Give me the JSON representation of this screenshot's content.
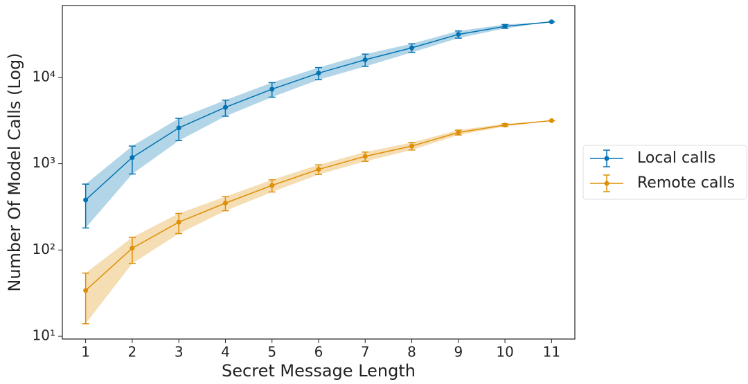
{
  "chart_data": {
    "type": "line",
    "x_label": "Secret Message Length",
    "y_label": "Number Of Model Calls (Log)",
    "x": [
      1,
      2,
      3,
      4,
      5,
      6,
      7,
      8,
      9,
      10,
      11
    ],
    "series": [
      {
        "name": "Local calls",
        "color": "#0173b2",
        "values": [
          380,
          1180,
          2600,
          4500,
          7300,
          11200,
          16000,
          22000,
          31500,
          39000,
          44000
        ],
        "errors": [
          200,
          420,
          750,
          950,
          1400,
          1800,
          2600,
          2500,
          3000,
          2000,
          0
        ]
      },
      {
        "name": "Remote calls",
        "color": "#de8f05",
        "values": [
          34,
          105,
          210,
          350,
          560,
          860,
          1215,
          1600,
          2300,
          2800,
          3150
        ],
        "errors": [
          20,
          35,
          55,
          65,
          90,
          110,
          150,
          160,
          150,
          100,
          0
        ]
      }
    ],
    "xlim": [
      0.5,
      11.5
    ],
    "xticks": [
      1,
      2,
      3,
      4,
      5,
      6,
      7,
      8,
      9,
      10,
      11
    ],
    "ylim": [
      9.3,
      68000
    ],
    "log_scale": true,
    "yticks": [
      {
        "value": 10,
        "label": "10¹"
      },
      {
        "value": 100,
        "label": "10²"
      },
      {
        "value": 1000,
        "label": "10³"
      },
      {
        "value": 10000,
        "label": "10⁴"
      }
    ],
    "legend": "right"
  }
}
